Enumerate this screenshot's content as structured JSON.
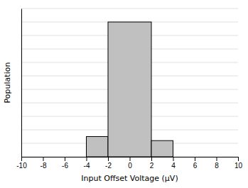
{
  "chart_data": {
    "type": "histogram",
    "xlabel": "Input Offset Voltage (μV)",
    "ylabel": "Population",
    "bins": [
      -4,
      -2,
      2,
      4
    ],
    "values": [
      15,
      100,
      12
    ],
    "color": "#c0c0c0",
    "xlim": [
      -10,
      10
    ],
    "xticks": [
      -10,
      -8,
      -6,
      -4,
      -2,
      0,
      2,
      4,
      6,
      8,
      10
    ],
    "ylim": [
      0,
      110
    ],
    "yticks": [
      0,
      10,
      20,
      30,
      40,
      50,
      60,
      70,
      80,
      90,
      100,
      110
    ],
    "grid": true,
    "tick_labels": "x"
  }
}
